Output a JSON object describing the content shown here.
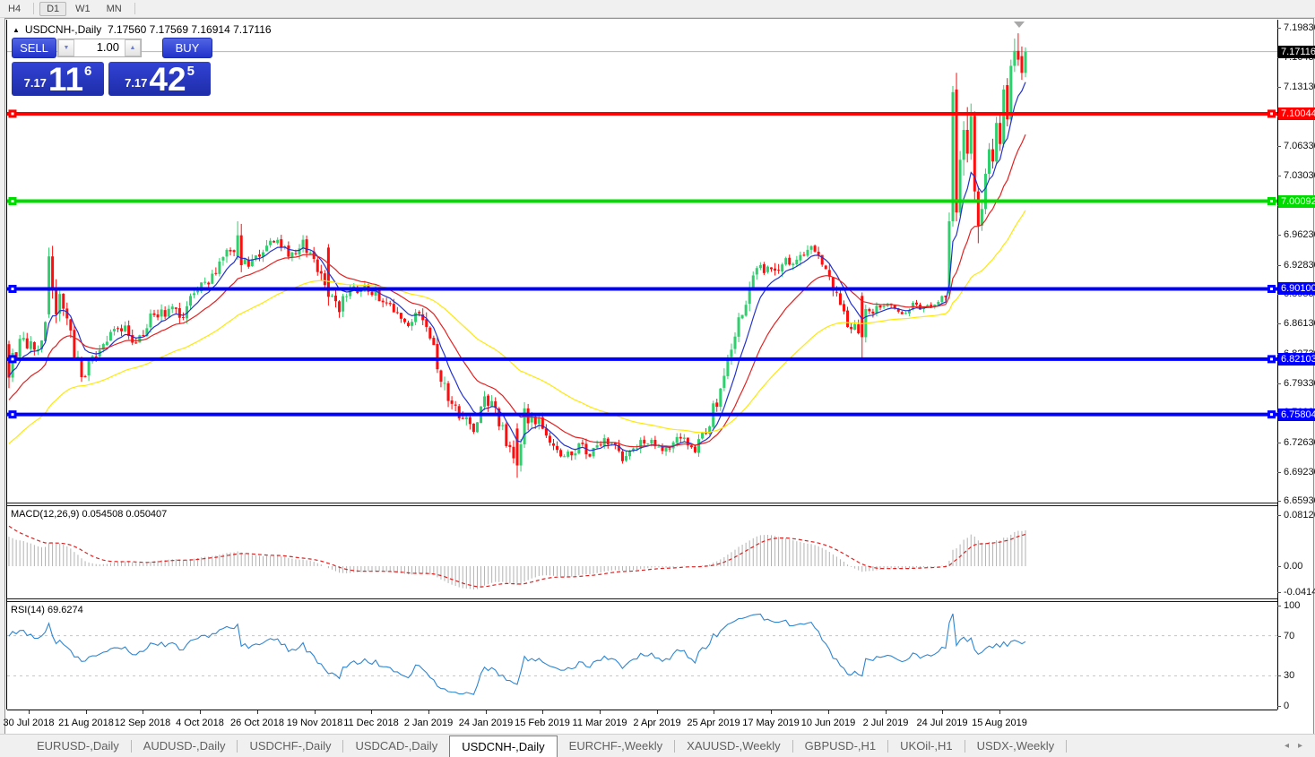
{
  "toolbar": {
    "timeframes": [
      "H4",
      "D1",
      "W1",
      "MN"
    ],
    "active": "D1"
  },
  "chart_header": {
    "collapse_icon": "▲",
    "title": "USDCNH-,Daily",
    "ohlc": "7.17560 7.17569 7.16914 7.17116"
  },
  "one_click": {
    "sell_label": "SELL",
    "buy_label": "BUY",
    "volume": "1.00",
    "spinner_down_icon": "▼",
    "spinner_up_icon": "▲",
    "sell_price": {
      "small": "7.17",
      "big": "11",
      "sup": "6"
    },
    "buy_price": {
      "small": "7.17",
      "big": "42",
      "sup": "5"
    }
  },
  "macd_panel": {
    "label": "MACD(12,26,9) 0.054508 0.050407",
    "axis_ticks": [
      "0.081265",
      "0.00",
      "-0.041412"
    ]
  },
  "rsi_panel": {
    "label": "RSI(14) 69.6274",
    "axis_ticks": [
      "100",
      "70",
      "30",
      "0"
    ]
  },
  "tabs": {
    "items": [
      "EURUSD-,Daily",
      "AUDUSD-,Daily",
      "USDCHF-,Daily",
      "USDCAD-,Daily",
      "USDCNH-,Daily",
      "EURCHF-,Weekly",
      "XAUUSD-,Weekly",
      "GBPUSD-,H1",
      "UKOil-,H1",
      "USDX-,Weekly"
    ],
    "active": "USDCNH-,Daily",
    "scroll_left_icon": "◂",
    "scroll_right_icon": "▸"
  },
  "chart_data": {
    "type": "candlestick",
    "symbol": "USDCNH-",
    "period": "Daily",
    "title": "USDCNH-,Daily",
    "open": "7.17560",
    "high": "7.17569",
    "low": "7.16914",
    "close": "7.17116",
    "count": 281,
    "price_axis": {
      "range": [
        6.6593,
        7.1983
      ],
      "ticks": [
        "7.19830",
        "7.16430",
        "7.13130",
        "7.09730",
        "7.06330",
        "7.03030",
        "6.99630",
        "6.96230",
        "6.92830",
        "6.89530",
        "6.86130",
        "6.82730",
        "6.79330",
        "6.76030",
        "6.72630",
        "6.69230",
        "6.65930"
      ]
    },
    "current_price": {
      "value": 7.17116,
      "label": "7.17116",
      "line_color": "#b4b4b4",
      "box_bg": "#000000",
      "box_text": "#ffffff"
    },
    "levels": [
      {
        "price": 7.10044,
        "label": "7.10044",
        "color": "#fe0000",
        "text": "#ffffff"
      },
      {
        "price": 7.00092,
        "label": "7.00092",
        "color": "#00dc00",
        "text": "#ffffff"
      },
      {
        "price": 6.901,
        "label": "6.90100",
        "color": "#0000fe",
        "text": "#ffffff"
      },
      {
        "price": 6.82103,
        "label": "6.82103",
        "color": "#0000fe",
        "text": "#ffffff"
      },
      {
        "price": 6.75804,
        "label": "6.75804",
        "color": "#0000fe",
        "text": "#ffffff"
      }
    ],
    "candle_colors": {
      "up": "#2fcf6d",
      "down": "#fd0d0d"
    },
    "moving_averages": [
      {
        "type": "ema",
        "period": 8,
        "color": "#2433cd",
        "seed": 6.802
      },
      {
        "type": "ema",
        "period": 21,
        "color": "#e32222",
        "seed": 6.772
      },
      {
        "type": "ema",
        "period": 55,
        "color": "#ffe70a",
        "seed": 6.722
      }
    ],
    "indicators": {
      "macd": {
        "params": [
          12,
          26,
          9
        ],
        "value": 0.054508,
        "signal_value": 0.050407,
        "axis_range": [
          -0.0455,
          0.0835
        ],
        "hist_color": "#b2b2b2",
        "signal_color": "#dd2222",
        "seeds": {
          "ema_fast": 6.815,
          "ema_slow": 6.763,
          "signal": 0.068
        }
      },
      "rsi": {
        "params": [
          14
        ],
        "value": 69.6274,
        "axis_range": [
          0,
          100
        ],
        "levels": [
          70,
          30
        ],
        "line_color": "#2e86d2",
        "seeds": {
          "avg_gain": 0.0082,
          "avg_loss": 0.0036
        }
      }
    },
    "anchors": [
      [
        0,
        6.815,
        0.012
      ],
      [
        4,
        6.843,
        0.012
      ],
      [
        8,
        6.83,
        0.01
      ],
      [
        11,
        6.885,
        0.014
      ],
      [
        14,
        6.9,
        0.012
      ],
      [
        17,
        6.845,
        0.012
      ],
      [
        20,
        6.8,
        0.012
      ],
      [
        23,
        6.82,
        0.01
      ],
      [
        27,
        6.845,
        0.01
      ],
      [
        31,
        6.858,
        0.009
      ],
      [
        35,
        6.838,
        0.009
      ],
      [
        39,
        6.868,
        0.009
      ],
      [
        44,
        6.875,
        0.009
      ],
      [
        48,
        6.872,
        0.009
      ],
      [
        52,
        6.905,
        0.01
      ],
      [
        56,
        6.915,
        0.01
      ],
      [
        60,
        6.945,
        0.01
      ],
      [
        63,
        6.952,
        0.012
      ],
      [
        66,
        6.928,
        0.01
      ],
      [
        70,
        6.945,
        0.009
      ],
      [
        74,
        6.955,
        0.009
      ],
      [
        78,
        6.938,
        0.009
      ],
      [
        81,
        6.953,
        0.01
      ],
      [
        84,
        6.938,
        0.01
      ],
      [
        88,
        6.898,
        0.012
      ],
      [
        91,
        6.88,
        0.01
      ],
      [
        94,
        6.898,
        0.008
      ],
      [
        98,
        6.905,
        0.008
      ],
      [
        102,
        6.893,
        0.008
      ],
      [
        106,
        6.877,
        0.008
      ],
      [
        110,
        6.863,
        0.008
      ],
      [
        113,
        6.872,
        0.008
      ],
      [
        116,
        6.845,
        0.012
      ],
      [
        120,
        6.788,
        0.012
      ],
      [
        124,
        6.758,
        0.01
      ],
      [
        128,
        6.742,
        0.01
      ],
      [
        131,
        6.778,
        0.01
      ],
      [
        134,
        6.762,
        0.01
      ],
      [
        137,
        6.727,
        0.01
      ],
      [
        140,
        6.705,
        0.01
      ],
      [
        143,
        6.765,
        0.012
      ],
      [
        146,
        6.748,
        0.009
      ],
      [
        149,
        6.722,
        0.008
      ],
      [
        153,
        6.708,
        0.008
      ],
      [
        157,
        6.722,
        0.008
      ],
      [
        161,
        6.714,
        0.008
      ],
      [
        165,
        6.729,
        0.008
      ],
      [
        169,
        6.71,
        0.008
      ],
      [
        173,
        6.722,
        0.007
      ],
      [
        177,
        6.73,
        0.007
      ],
      [
        181,
        6.718,
        0.007
      ],
      [
        185,
        6.734,
        0.007
      ],
      [
        189,
        6.72,
        0.007
      ],
      [
        192,
        6.738,
        0.008
      ],
      [
        195,
        6.775,
        0.012
      ],
      [
        198,
        6.818,
        0.012
      ],
      [
        201,
        6.865,
        0.012
      ],
      [
        204,
        6.905,
        0.012
      ],
      [
        207,
        6.923,
        0.01
      ],
      [
        210,
        6.918,
        0.009
      ],
      [
        213,
        6.932,
        0.009
      ],
      [
        216,
        6.925,
        0.009
      ],
      [
        219,
        6.937,
        0.009
      ],
      [
        222,
        6.948,
        0.009
      ],
      [
        224,
        6.93,
        0.009
      ],
      [
        227,
        6.905,
        0.01
      ],
      [
        230,
        6.868,
        0.01
      ],
      [
        233,
        6.855,
        0.009
      ],
      [
        235,
        6.845,
        0.01
      ],
      [
        237,
        6.878,
        0.008
      ],
      [
        240,
        6.877,
        0.006
      ],
      [
        243,
        6.883,
        0.005
      ],
      [
        246,
        6.875,
        0.005
      ],
      [
        249,
        6.882,
        0.005
      ],
      [
        252,
        6.877,
        0.005
      ],
      [
        255,
        6.883,
        0.005
      ],
      [
        258,
        6.896,
        0.006
      ]
    ],
    "overrides": [
      [
        0,
        6.838,
        6.842,
        6.788,
        6.8
      ],
      [
        1,
        6.8,
        6.833,
        6.795,
        6.828
      ],
      [
        11,
        6.872,
        6.948,
        6.868,
        6.938
      ],
      [
        12,
        6.938,
        6.95,
        6.89,
        6.9
      ],
      [
        13,
        6.9,
        6.912,
        6.862,
        6.872
      ],
      [
        63,
        6.938,
        6.978,
        6.934,
        6.962
      ],
      [
        64,
        6.962,
        6.975,
        6.92,
        6.928
      ],
      [
        88,
        6.948,
        6.952,
        6.882,
        6.892
      ],
      [
        140,
        6.742,
        6.748,
        6.686,
        6.7
      ],
      [
        141,
        6.7,
        6.73,
        6.693,
        6.724
      ],
      [
        142,
        6.724,
        6.772,
        6.72,
        6.765
      ],
      [
        143,
        6.765,
        6.77,
        6.74,
        6.748
      ],
      [
        235,
        6.893,
        6.897,
        6.822,
        6.846
      ],
      [
        236,
        6.846,
        6.883,
        6.84,
        6.878
      ],
      [
        259,
        6.896,
        6.988,
        6.89,
        6.978
      ],
      [
        260,
        6.978,
        7.132,
        6.972,
        7.125
      ],
      [
        261,
        7.128,
        7.147,
        6.978,
        6.988
      ],
      [
        262,
        6.988,
        7.058,
        6.984,
        7.048
      ],
      [
        263,
        7.048,
        7.092,
        7.03,
        7.082
      ],
      [
        264,
        7.082,
        7.108,
        7.045,
        7.055
      ],
      [
        265,
        7.055,
        7.112,
        7.048,
        7.098
      ],
      [
        266,
        7.098,
        7.103,
        7.0,
        7.012
      ],
      [
        267,
        7.012,
        7.018,
        6.953,
        6.973
      ],
      [
        268,
        6.973,
        7.002,
        6.967,
        6.992
      ],
      [
        269,
        6.992,
        7.038,
        6.986,
        7.032
      ],
      [
        270,
        7.032,
        7.067,
        7.026,
        7.06
      ],
      [
        271,
        7.06,
        7.072,
        7.038,
        7.046
      ],
      [
        272,
        7.046,
        7.097,
        7.042,
        7.09
      ],
      [
        273,
        7.09,
        7.102,
        7.058,
        7.066
      ],
      [
        274,
        7.066,
        7.133,
        7.062,
        7.128
      ],
      [
        275,
        7.133,
        7.141,
        7.086,
        7.094
      ],
      [
        276,
        7.094,
        7.162,
        7.09,
        7.155
      ],
      [
        277,
        7.155,
        7.186,
        7.148,
        7.172
      ],
      [
        278,
        7.172,
        7.192,
        7.155,
        7.162
      ],
      [
        279,
        7.166,
        7.177,
        7.139,
        7.147
      ],
      [
        280,
        7.147,
        7.176,
        7.142,
        7.171
      ]
    ],
    "date_axis": {
      "labels": [
        "30 Jul 2018",
        "21 Aug 2018",
        "12 Sep 2018",
        "4 Oct 2018",
        "26 Oct 2018",
        "19 Nov 2018",
        "11 Dec 2018",
        "2 Jan 2019",
        "24 Jan 2019",
        "15 Feb 2019",
        "11 Mar 2019",
        "2 Apr 2019",
        "25 Apr 2019",
        "17 May 2019",
        "10 Jun 2019",
        "2 Jul 2019",
        "24 Jul 2019",
        "15 Aug 2019"
      ]
    }
  }
}
